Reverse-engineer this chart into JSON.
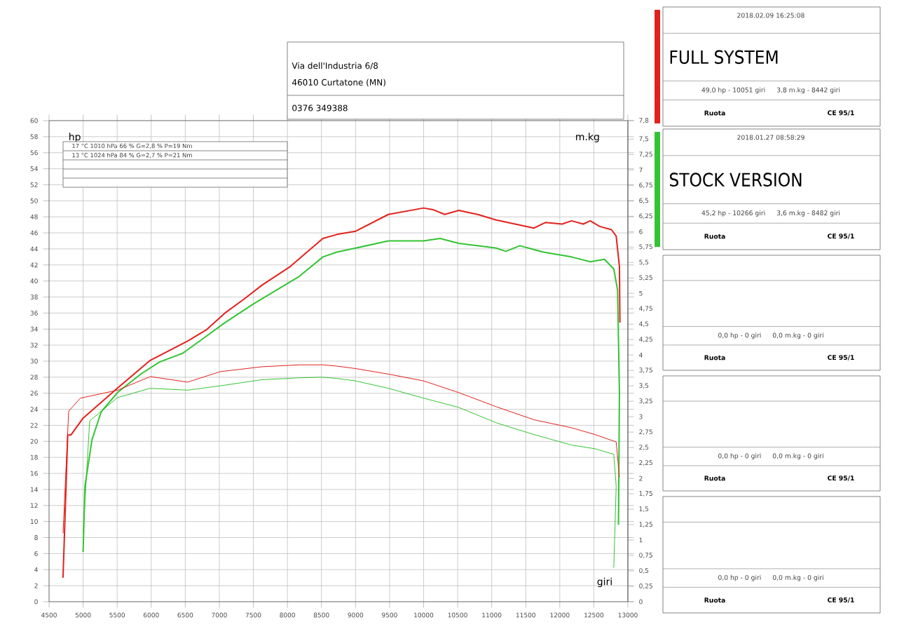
{
  "chart_data": {
    "type": "line",
    "xlabel": "giri",
    "ylabel": "hp",
    "y2label": "m.kg",
    "xlim": [
      4500,
      13000
    ],
    "xticks": [
      4500,
      5000,
      5500,
      6000,
      6500,
      7000,
      7500,
      8000,
      8500,
      9000,
      9500,
      10000,
      10500,
      11000,
      11500,
      12000,
      12500,
      13000
    ],
    "ylim": [
      0,
      60
    ],
    "yticks": [
      0,
      2,
      4,
      6,
      8,
      10,
      12,
      14,
      16,
      18,
      20,
      22,
      24,
      26,
      28,
      30,
      32,
      34,
      36,
      38,
      40,
      42,
      44,
      46,
      48,
      50,
      52,
      54,
      56,
      58,
      60
    ],
    "y2lim": [
      0,
      7.8
    ],
    "y2ticks": [
      0,
      {
        "value": 0.25,
        "label": "0,25"
      },
      {
        "value": 0.5,
        "label": "0,5"
      },
      {
        "value": 0.75,
        "label": "0,75"
      },
      1,
      {
        "value": 1.25,
        "label": "1,25"
      },
      {
        "value": 1.5,
        "label": "1,5"
      },
      {
        "value": 1.75,
        "label": "1,75"
      },
      2,
      {
        "value": 2.25,
        "label": "2,25"
      },
      {
        "value": 2.5,
        "label": "2,5"
      },
      {
        "value": 2.75,
        "label": "2,75"
      },
      3,
      {
        "value": 3.25,
        "label": "3,25"
      },
      {
        "value": 3.5,
        "label": "3,5"
      },
      {
        "value": 3.75,
        "label": "3,75"
      },
      4,
      {
        "value": 4.25,
        "label": "4,25"
      },
      {
        "value": 4.5,
        "label": "4,5"
      },
      {
        "value": 4.75,
        "label": "4,75"
      },
      5,
      {
        "value": 5.25,
        "label": "5,25"
      },
      {
        "value": 5.5,
        "label": "5,5"
      },
      {
        "value": 5.75,
        "label": "5,75"
      },
      6,
      {
        "value": 6.25,
        "label": "6,25"
      },
      {
        "value": 6.5,
        "label": "6,5"
      },
      {
        "value": 6.75,
        "label": "6,75"
      },
      7,
      {
        "value": 7.25,
        "label": "7,25"
      },
      {
        "value": 7.5,
        "label": "7,5"
      },
      {
        "value": 7.8,
        "label": "7,8"
      }
    ],
    "grid": true,
    "legend": "right",
    "series": [
      {
        "name": "FULL SYSTEM",
        "color": "#e3211c",
        "x": [
          4705,
          4774,
          4822,
          5000,
          5500,
          5986,
          6260,
          6534,
          6808,
          7082,
          7356,
          7630,
          8041,
          8521,
          8726,
          9000,
          9483,
          10000,
          10138,
          10310,
          10517,
          10793,
          11069,
          11345,
          11621,
          11793,
          12034,
          12172,
          12345,
          12448,
          12586,
          12759,
          12828,
          12876,
          12883
        ],
        "values": [
          3,
          20.8,
          20.8,
          22.9,
          26.6,
          30.1,
          31.3,
          32.5,
          33.9,
          36,
          37.7,
          39.5,
          41.8,
          45.3,
          45.8,
          46.2,
          48.3,
          49.1,
          48.9,
          48.3,
          48.8,
          48.3,
          47.6,
          47.1,
          46.6,
          47.3,
          47.1,
          47.5,
          47.1,
          47.5,
          46.8,
          46.4,
          45.6,
          41.8,
          34.8
        ]
      },
      {
        "name": "STOCK VERSION",
        "color": "#33c433",
        "x": [
          5000,
          5027,
          5130,
          5267,
          5507,
          5849,
          6123,
          6466,
          6808,
          7082,
          7493,
          7904,
          8178,
          8521,
          8726,
          9000,
          9483,
          10000,
          10241,
          10517,
          11069,
          11207,
          11414,
          11759,
          12172,
          12448,
          12655,
          12793,
          12848,
          12876,
          12862
        ],
        "values": [
          6.2,
          14.4,
          20.2,
          23.7,
          26.1,
          28.4,
          29.9,
          31,
          33.1,
          34.8,
          37.1,
          39.2,
          40.6,
          43,
          43.6,
          44.1,
          45,
          45,
          45.3,
          44.7,
          44.1,
          43.7,
          44.4,
          43.6,
          43,
          42.4,
          42.7,
          41.5,
          38.9,
          26.1,
          9.6
        ]
      },
      {
        "color": "#e3211c",
        "axis": "y2",
        "x": [
          4705,
          4788,
          4959,
          5507,
          5986,
          6534,
          7014,
          7630,
          8178,
          8521,
          8726,
          9000,
          9483,
          10000,
          10517,
          11069,
          11621,
          12172,
          12517,
          12828,
          12876
        ],
        "values": [
          1.11,
          3.09,
          3.3,
          3.43,
          3.65,
          3.56,
          3.73,
          3.81,
          3.84,
          3.84,
          3.82,
          3.78,
          3.69,
          3.58,
          3.39,
          3.16,
          2.95,
          2.82,
          2.71,
          2.59,
          2.02
        ]
      },
      {
        "color": "#33c433",
        "axis": "y2",
        "x": [
          5000,
          5096,
          5507,
          5986,
          6534,
          7014,
          7630,
          8178,
          8521,
          8726,
          9000,
          9483,
          10000,
          10517,
          11069,
          11621,
          12172,
          12517,
          12793,
          12828,
          12793
        ],
        "values": [
          1.11,
          2.93,
          3.31,
          3.46,
          3.43,
          3.5,
          3.6,
          3.63,
          3.64,
          3.62,
          3.58,
          3.46,
          3.3,
          3.15,
          2.9,
          2.71,
          2.54,
          2.48,
          2.39,
          1.87,
          0.55
        ]
      }
    ],
    "annotations": [
      "2018.02.09 16:25:08",
      "49,0 hp - 10051 giri",
      "3,8 m.kg - 8442 giri",
      "Ruota",
      "CE 95/1",
      "2018.01.27 08:58:29",
      "45,2 hp - 10266 giri",
      "3,6 m.kg - 8482 giri",
      "Ruota",
      "CE 95/1",
      "0,0 hp - 0 giri",
      "0,0 m.kg - 0 giri",
      "Ruota",
      "CE 95/1",
      "0,0 hp - 0 giri",
      "0,0 m.kg - 0 giri",
      "Ruota",
      "CE 95/1",
      "0,0 hp - 0 giri",
      "0,0 m.kg - 0 giri",
      "Ruota",
      "CE 95/1",
      "17 °C   1010 hPa   66 %   G=2,8 %   P=19 Nm",
      "13 °C   1024 hPa   84 %   G=2,7 %   P=21 Nm",
      "Via dell'Industria 6/8",
      "46010 Curtatone (MN)",
      "0376 349388"
    ]
  }
}
